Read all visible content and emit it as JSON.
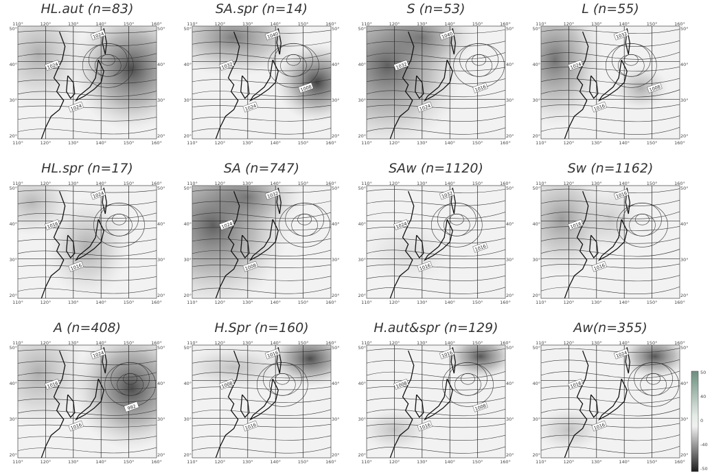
{
  "panels": [
    {
      "title": "HL.aut (n=83)",
      "shade": "dark_high_east",
      "isobars": [
        "1024",
        "1024",
        "1024"
      ]
    },
    {
      "title": "SA.spr (n=14)",
      "shade": "dark_low_east_west_high",
      "isobars": [
        "1040",
        "1032",
        "1024",
        "1008"
      ]
    },
    {
      "title": "S (n=53)",
      "shade": "dark_west",
      "isobars": [
        "1040",
        "1032",
        "1024",
        "1016"
      ]
    },
    {
      "title": "L (n=55)",
      "shade": "west_with_low_east",
      "isobars": [
        "1032",
        "1024",
        "1016",
        "1008"
      ]
    },
    {
      "title": "HL.spr (n=17)",
      "shade": "mixed_center",
      "isobars": [
        "1024",
        "1016",
        "1016"
      ]
    },
    {
      "title": "SA (n=747)",
      "shade": "dark_west",
      "isobars": [
        "1032",
        "1024",
        "1008"
      ]
    },
    {
      "title": "SAw (n=1120)",
      "shade": "light",
      "isobars": [
        "1032",
        "1024",
        "1016",
        "1016"
      ]
    },
    {
      "title": "Sw (n=1162)",
      "shade": "medium_west",
      "isobars": [
        "1016",
        "1016",
        "1016"
      ]
    },
    {
      "title": "A (n=408)",
      "shade": "dark_high_east",
      "isobars": [
        "1024",
        "1016",
        "1016",
        "992"
      ]
    },
    {
      "title": "H.Spr (n=160)",
      "shade": "dark_northeast",
      "isobars": [
        "1016",
        "1008",
        "1016"
      ]
    },
    {
      "title": "H.aut&spr (n=129)",
      "shade": "dark_northeast_small",
      "isobars": [
        "1016",
        "1008",
        "1016",
        "1008"
      ]
    },
    {
      "title": "Aw(n=355)",
      "shade": "dark_northeast_small",
      "isobars": [
        "1024",
        "1016",
        "1016"
      ]
    }
  ],
  "map": {
    "lon_ticks": [
      "110°",
      "120°",
      "130°",
      "140°",
      "150°",
      "160°"
    ],
    "lat_ticks": [
      "50°",
      "40°",
      "30°",
      "20°"
    ]
  },
  "colorbar": {
    "ticks": [
      "50",
      "40",
      "0",
      "-40",
      "-50"
    ]
  }
}
